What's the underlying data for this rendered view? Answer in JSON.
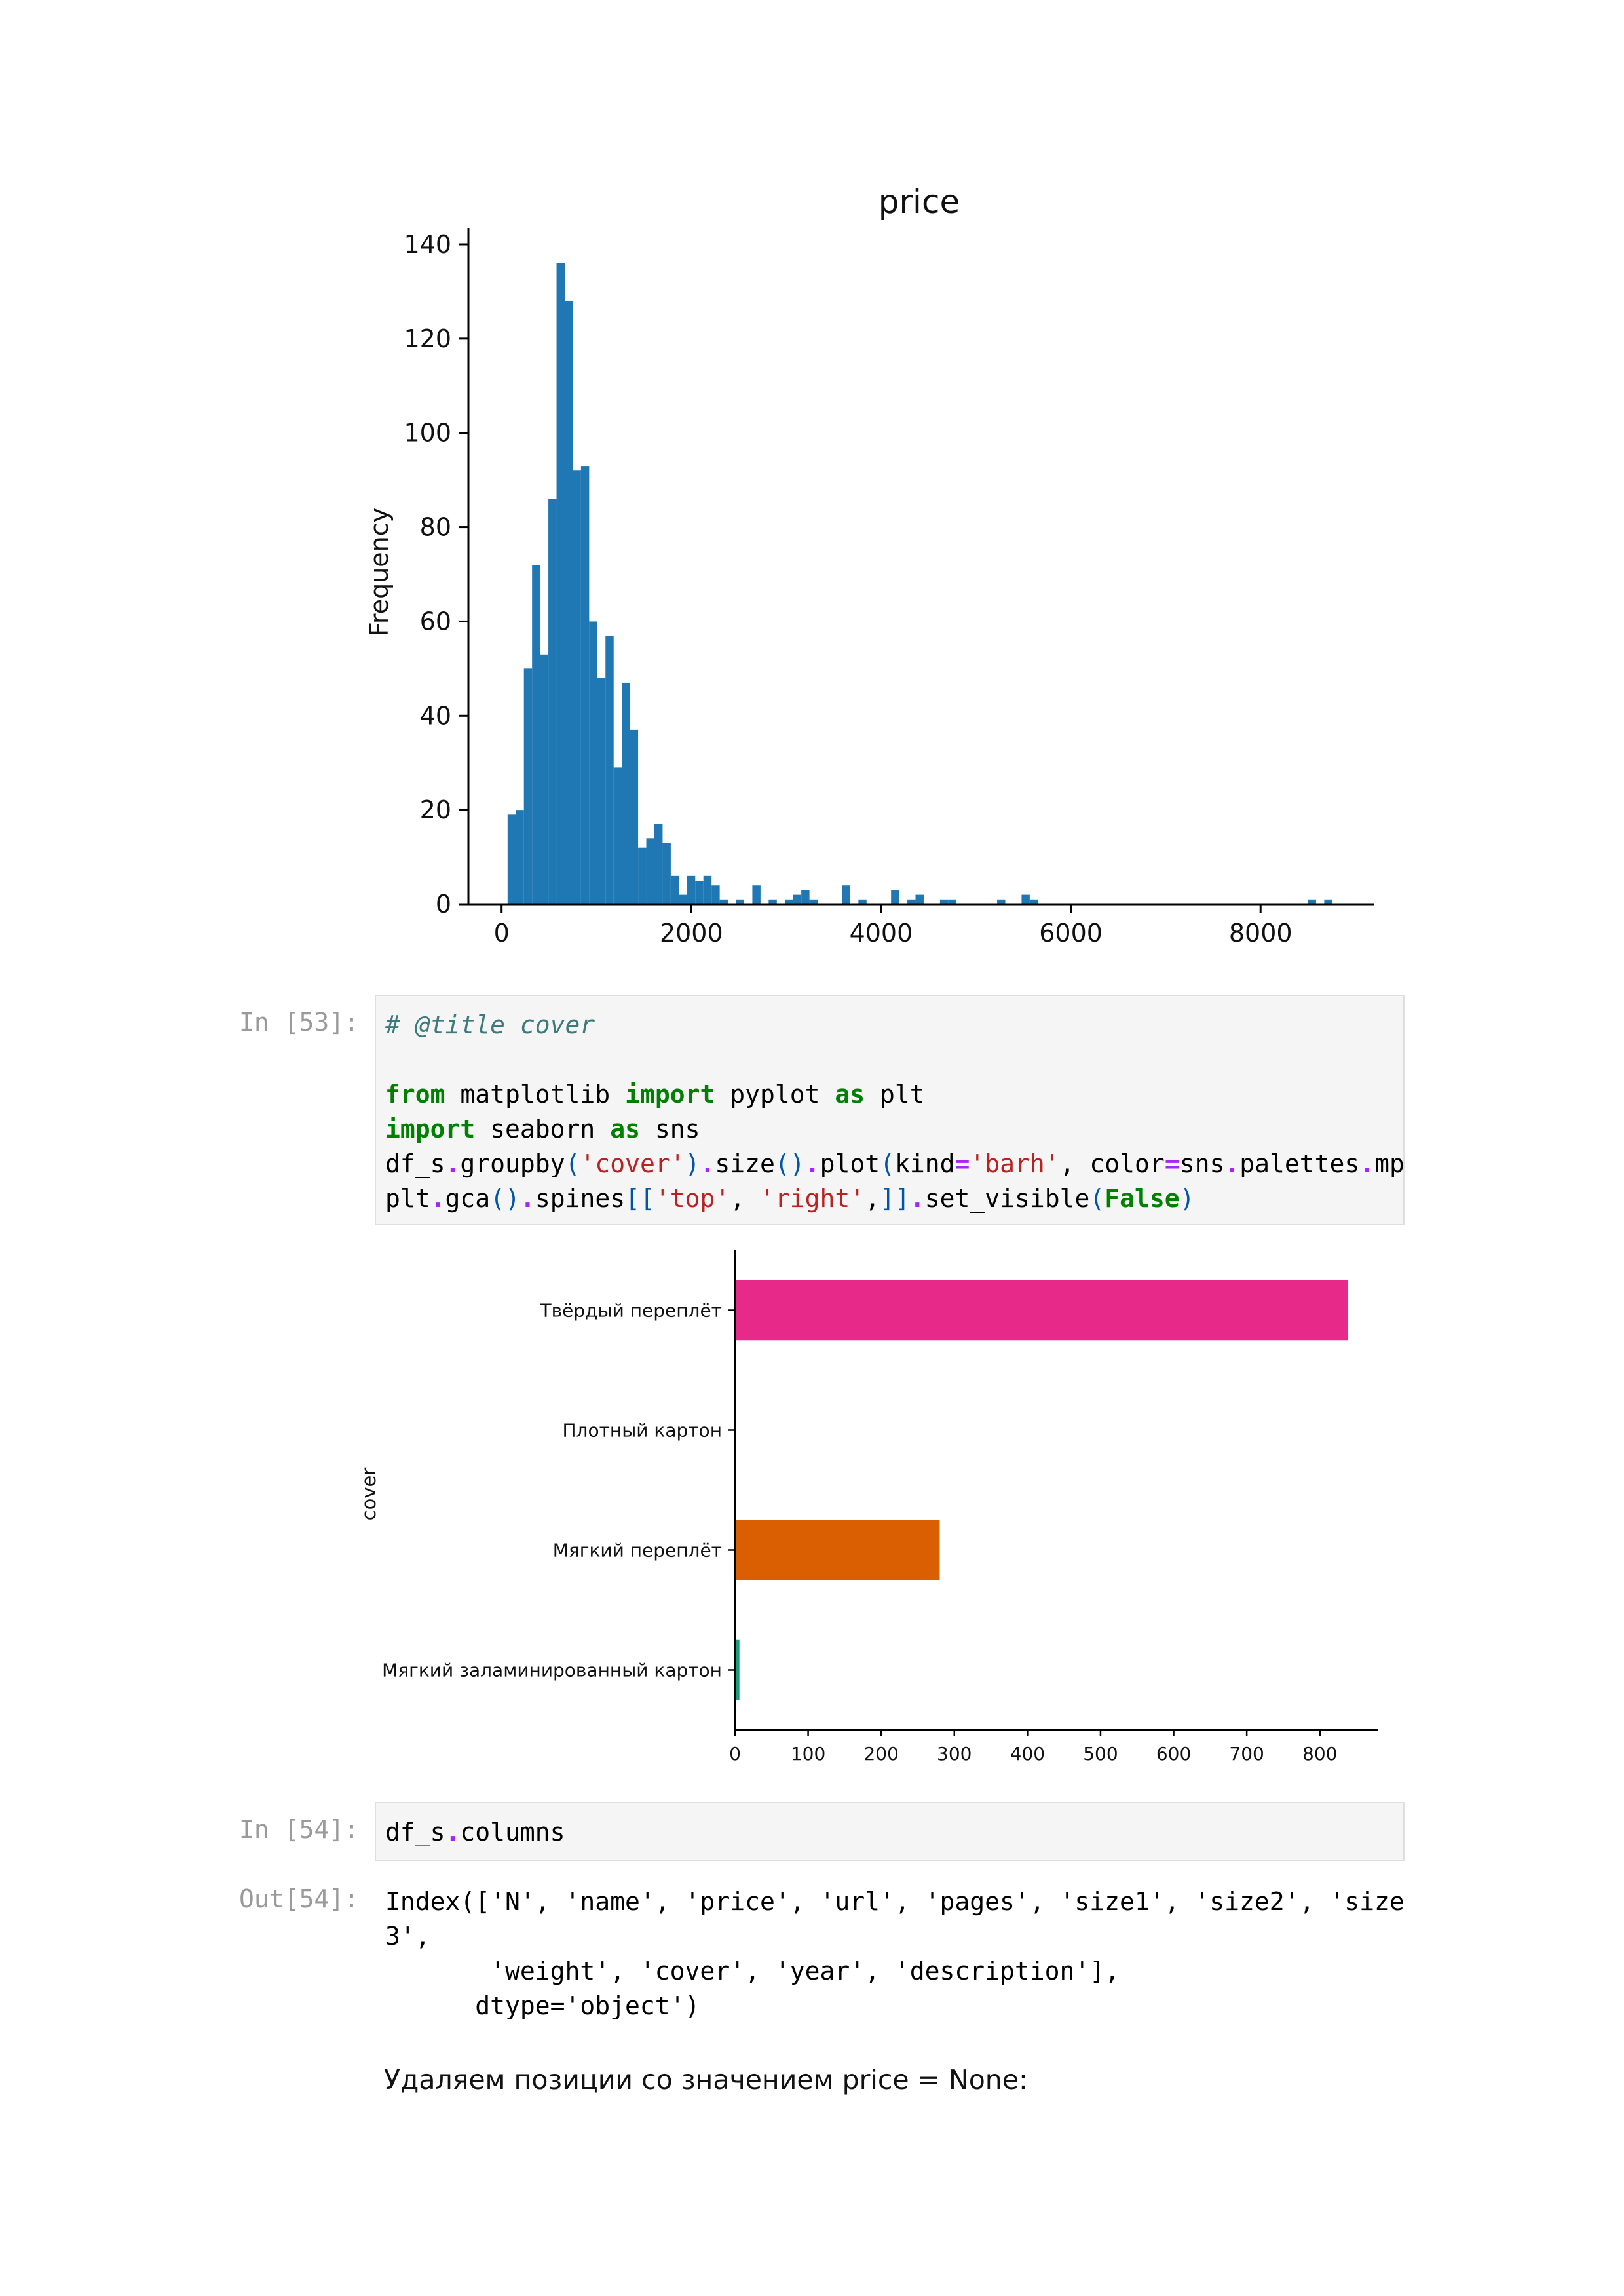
{
  "histogram": {
    "chart_data": {
      "type": "bar",
      "title": "price",
      "xlabel": "",
      "ylabel": "Frequency",
      "xlim": [
        -350,
        9200
      ],
      "ylim": [
        0,
        140
      ],
      "xticks": [
        "0",
        "2000",
        "4000",
        "6000",
        "8000"
      ],
      "yticks": [
        "0",
        "20",
        "40",
        "60",
        "80",
        "100",
        "120",
        "140"
      ],
      "bin_width": 86,
      "color": "#1f77b4",
      "bins": [
        [
          63,
          19
        ],
        [
          149,
          20
        ],
        [
          235,
          50
        ],
        [
          321,
          72
        ],
        [
          407,
          53
        ],
        [
          493,
          86
        ],
        [
          579,
          136
        ],
        [
          665,
          128
        ],
        [
          751,
          92
        ],
        [
          837,
          93
        ],
        [
          923,
          60
        ],
        [
          1009,
          48
        ],
        [
          1095,
          57
        ],
        [
          1181,
          29
        ],
        [
          1267,
          47
        ],
        [
          1353,
          37
        ],
        [
          1439,
          12
        ],
        [
          1525,
          14
        ],
        [
          1611,
          17
        ],
        [
          1697,
          13
        ],
        [
          1783,
          6
        ],
        [
          1869,
          2
        ],
        [
          1955,
          6
        ],
        [
          2041,
          5
        ],
        [
          2127,
          6
        ],
        [
          2213,
          4
        ],
        [
          2299,
          1
        ],
        [
          2471,
          1
        ],
        [
          2643,
          4
        ],
        [
          2815,
          1
        ],
        [
          2987,
          1
        ],
        [
          3073,
          2
        ],
        [
          3159,
          3
        ],
        [
          3245,
          1
        ],
        [
          3589,
          4
        ],
        [
          3761,
          1
        ],
        [
          4105,
          3
        ],
        [
          4277,
          1
        ],
        [
          4363,
          2
        ],
        [
          4621,
          1
        ],
        [
          4707,
          1
        ],
        [
          5223,
          1
        ],
        [
          5481,
          2
        ],
        [
          5567,
          1
        ],
        [
          8499,
          1
        ],
        [
          8671,
          1
        ]
      ]
    }
  },
  "cell53": {
    "prompt": "In [53]:",
    "lines": [
      [
        [
          "cm",
          "# @title cover"
        ]
      ],
      [],
      [
        [
          "kw",
          "from"
        ],
        [
          "",
          " matplotlib "
        ],
        [
          "kw",
          "import"
        ],
        [
          "",
          " pyplot "
        ],
        [
          "kw",
          "as"
        ],
        [
          "",
          " plt"
        ]
      ],
      [
        [
          "kw",
          "import"
        ],
        [
          "",
          " seaborn "
        ],
        [
          "kw",
          "as"
        ],
        [
          "",
          " sns"
        ]
      ],
      [
        [
          "",
          "df_s"
        ],
        [
          "op",
          "."
        ],
        [
          "",
          "groupby"
        ],
        [
          "pn",
          "("
        ],
        [
          "st",
          "'cover'"
        ],
        [
          "pn",
          ")"
        ],
        [
          "op",
          "."
        ],
        [
          "",
          "size"
        ],
        [
          "pn",
          "()"
        ],
        [
          "op",
          "."
        ],
        [
          "",
          "plot"
        ],
        [
          "pn",
          "("
        ],
        [
          "",
          "kind"
        ],
        [
          "op",
          "="
        ],
        [
          "st",
          "'barh'"
        ],
        [
          "",
          ", color"
        ],
        [
          "op",
          "="
        ],
        [
          "",
          "sns"
        ],
        [
          "op",
          "."
        ],
        [
          "",
          "palettes"
        ],
        [
          "op",
          "."
        ],
        [
          "",
          "mpl_"
        ]
      ],
      [
        [
          "",
          "plt"
        ],
        [
          "op",
          "."
        ],
        [
          "",
          "gca"
        ],
        [
          "pn",
          "()"
        ],
        [
          "op",
          "."
        ],
        [
          "",
          "spines"
        ],
        [
          "pn",
          "[["
        ],
        [
          "st",
          "'top'"
        ],
        [
          "",
          ", "
        ],
        [
          "st",
          "'right'"
        ],
        [
          "",
          ","
        ],
        [
          "pn",
          "]]"
        ],
        [
          "op",
          "."
        ],
        [
          "",
          "set_visible"
        ],
        [
          "pn",
          "("
        ],
        [
          "kw",
          "False"
        ],
        [
          "pn",
          ")"
        ]
      ]
    ]
  },
  "barchart": {
    "chart_data": {
      "type": "bar",
      "orientation": "horizontal",
      "ylabel": "cover",
      "xlabel": "",
      "categories": [
        "Твёрдый переплёт",
        "Плотный картон",
        "Мягкий переплёт",
        "Мягкий заламинированный картон"
      ],
      "values": [
        838,
        0,
        280,
        6
      ],
      "colors": [
        "#e7298a",
        "#7570b3",
        "#d95f02",
        "#1b9e77"
      ],
      "xlim": [
        0,
        880
      ],
      "xticks": [
        "0",
        "100",
        "200",
        "300",
        "400",
        "500",
        "600",
        "700",
        "800"
      ]
    }
  },
  "cell54": {
    "prompt": "In [54]:",
    "lines": [
      [
        [
          "",
          "df_s"
        ],
        [
          "op",
          "."
        ],
        [
          "",
          "columns"
        ]
      ]
    ]
  },
  "out54": {
    "prompt": "Out[54]:",
    "text": "Index(['N', 'name', 'price', 'url', 'pages', 'size1', 'size2', 'size\n3',\n       'weight', 'cover', 'year', 'description'],\n      dtype='object')"
  },
  "markdown": {
    "text": "Удаляем позиции со значением price = None:"
  }
}
